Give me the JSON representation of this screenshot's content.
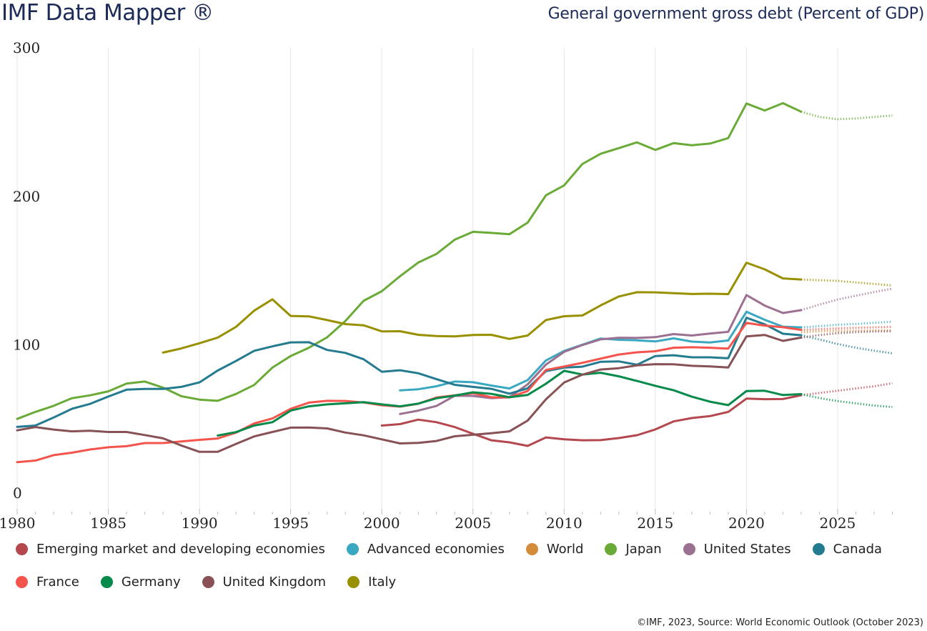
{
  "header": {
    "app_title": "IMF Data Mapper ®",
    "chart_title": "General government gross debt (Percent of GDP)"
  },
  "footer": {
    "source": "©IMF, 2023, Source: World Economic Outlook (October 2023)"
  },
  "chart_data": {
    "type": "line",
    "title": "General government gross debt (Percent of GDP)",
    "xlabel": "",
    "ylabel": "",
    "xlim": [
      1980,
      2028
    ],
    "ylim": [
      0,
      300
    ],
    "grid": "vertical",
    "x_ticks": [
      "1980",
      "1985",
      "1990",
      "1995",
      "2000",
      "2005",
      "2010",
      "2015",
      "2020",
      "2025"
    ],
    "y_ticks": [
      "0",
      "100",
      "200",
      "300"
    ],
    "legend_position": "bottom",
    "projection_start_year": 2023,
    "series": [
      {
        "name": "Emerging market and developing economies",
        "color": "#b5484f",
        "start_year": 2000,
        "values": [
          45.5,
          46.5,
          49.5,
          47.8,
          44.5,
          40.0,
          35.6,
          34.2,
          31.8,
          37.5,
          36.2,
          35.6,
          35.7,
          37.1,
          39.0,
          42.9,
          48.3,
          50.6,
          51.9,
          54.7,
          63.7,
          63.3,
          63.4,
          66.0,
          67.5,
          69.0,
          70.5,
          72.0,
          74.0
        ]
      },
      {
        "name": "Advanced economies",
        "color": "#3aa8c1",
        "start_year": 2001,
        "values": [
          69.2,
          70.0,
          72.0,
          75.2,
          74.7,
          72.5,
          70.5,
          76.2,
          89.4,
          95.8,
          100.0,
          104.2,
          103.3,
          103.0,
          102.2,
          104.3,
          102.1,
          101.5,
          102.9,
          122.2,
          116.8,
          112.2,
          111.7,
          112.5,
          113.5,
          114.0,
          114.8,
          115.5
        ]
      },
      {
        "name": "World",
        "color": "#d48c3a",
        "start_year": 2023,
        "values": [
          108.5,
          109.0,
          109.3,
          109.5,
          109.6,
          109.7
        ]
      },
      {
        "name": "Japan",
        "color": "#6aab37",
        "start_year": 1980,
        "values": [
          50.0,
          54.7,
          58.8,
          63.9,
          65.9,
          68.6,
          73.8,
          75.2,
          71.1,
          65.3,
          63.0,
          62.2,
          66.8,
          72.9,
          84.6,
          92.4,
          98.0,
          105.0,
          116.0,
          129.6,
          136.1,
          146.2,
          155.4,
          161.2,
          170.8,
          176.1,
          175.4,
          174.5,
          182.3,
          200.7,
          207.4,
          221.8,
          228.7,
          232.5,
          236.4,
          231.3,
          235.9,
          234.5,
          235.6,
          239.3,
          262.6,
          257.9,
          262.8,
          257.1,
          253.5,
          252.0,
          252.5,
          253.5,
          254.5
        ]
      },
      {
        "name": "United States",
        "color": "#9c7090",
        "start_year": 2001,
        "values": [
          53.3,
          55.6,
          58.7,
          65.6,
          65.5,
          64.0,
          64.6,
          73.3,
          86.6,
          95.2,
          99.8,
          103.6,
          104.7,
          104.6,
          105.1,
          107.2,
          106.2,
          107.5,
          108.7,
          133.5,
          126.4,
          121.4,
          123.3,
          127.0,
          130.5,
          133.0,
          135.5,
          137.8
        ]
      },
      {
        "name": "Canada",
        "color": "#247b90",
        "start_year": 1980,
        "values": [
          44.6,
          45.5,
          50.9,
          56.8,
          60.1,
          65.1,
          69.7,
          70.2,
          70.2,
          71.6,
          74.6,
          82.6,
          89.0,
          95.9,
          98.9,
          101.6,
          101.7,
          96.5,
          94.5,
          90.2,
          81.8,
          82.8,
          80.8,
          76.8,
          73.0,
          71.6,
          70.3,
          67.0,
          70.6,
          82.2,
          84.6,
          85.2,
          88.5,
          88.8,
          86.5,
          92.4,
          92.9,
          91.5,
          91.5,
          90.9,
          118.2,
          113.8,
          107.4,
          106.4,
          103.5,
          100.5,
          98.0,
          96.0,
          94.2
        ]
      },
      {
        "name": "France",
        "color": "#f5544c",
        "start_year": 1980,
        "values": [
          20.8,
          21.9,
          25.6,
          27.2,
          29.4,
          30.9,
          31.6,
          33.7,
          33.7,
          34.8,
          35.9,
          36.8,
          40.7,
          46.9,
          50.3,
          56.8,
          61.0,
          62.2,
          62.1,
          61.1,
          59.2,
          58.3,
          60.2,
          64.4,
          65.9,
          67.4,
          64.6,
          64.5,
          68.8,
          83.0,
          85.3,
          87.8,
          90.6,
          93.4,
          94.9,
          95.6,
          98.0,
          98.3,
          98.0,
          97.4,
          114.7,
          112.9,
          111.8,
          110.0,
          110.5,
          111.0,
          111.4,
          111.7,
          112.0
        ]
      },
      {
        "name": "Germany",
        "color": "#058a4a",
        "start_year": 1991,
        "values": [
          38.8,
          41.1,
          45.5,
          47.8,
          55.6,
          58.5,
          59.8,
          60.5,
          61.3,
          59.8,
          58.5,
          60.3,
          63.9,
          65.7,
          67.9,
          66.9,
          64.6,
          66.2,
          73.7,
          82.4,
          79.9,
          81.1,
          78.7,
          75.6,
          72.3,
          69.3,
          65.0,
          61.6,
          59.3,
          68.8,
          69.0,
          66.1,
          66.7,
          64.0,
          62.0,
          60.5,
          59.0,
          58.0
        ]
      },
      {
        "name": "United Kingdom",
        "color": "#875155",
        "start_year": 1980,
        "values": [
          42.3,
          44.5,
          42.8,
          41.6,
          42.0,
          41.2,
          41.2,
          39.1,
          36.9,
          32.1,
          27.8,
          27.8,
          33.1,
          38.2,
          41.2,
          44.1,
          44.2,
          43.6,
          40.8,
          38.9,
          36.2,
          33.5,
          33.8,
          35.1,
          38.3,
          39.3,
          40.3,
          41.6,
          48.9,
          63.2,
          74.5,
          79.8,
          83.3,
          84.2,
          86.1,
          86.9,
          86.8,
          85.8,
          85.4,
          84.7,
          105.6,
          106.6,
          102.6,
          104.8,
          106.5,
          107.8,
          108.5,
          108.9,
          109.1
        ]
      },
      {
        "name": "Italy",
        "color": "#999000",
        "start_year": 1988,
        "values": [
          94.7,
          97.5,
          101.0,
          104.8,
          112.0,
          123.0,
          130.6,
          119.4,
          119.1,
          116.6,
          113.9,
          113.1,
          109.0,
          109.1,
          106.7,
          105.9,
          105.6,
          106.6,
          106.7,
          103.9,
          106.2,
          116.6,
          119.2,
          119.7,
          126.5,
          132.5,
          135.4,
          135.3,
          134.8,
          134.2,
          134.4,
          134.1,
          155.3,
          150.8,
          144.7,
          144.0,
          143.5,
          143.0,
          142.0,
          141.0,
          140.0
        ]
      }
    ]
  }
}
